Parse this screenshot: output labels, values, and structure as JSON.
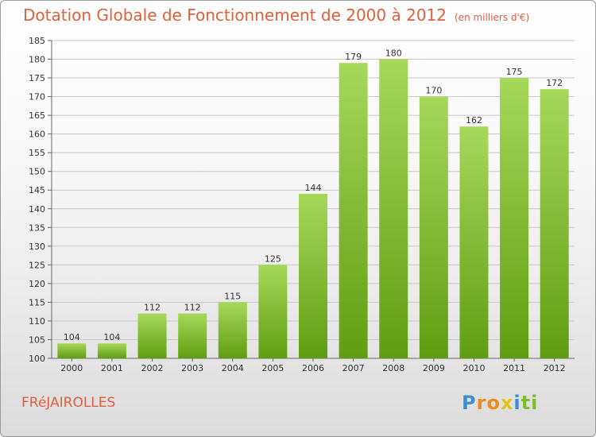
{
  "title": "Dotation Globale de Fonctionnement de 2000 à 2012",
  "unit": "(en milliers d'€)",
  "commune": "FRéJAIROLLES",
  "logo": {
    "letters": [
      "P",
      "r",
      "o",
      "x",
      "i",
      "t",
      "i"
    ],
    "colors": [
      "#3c8fd6",
      "#f08a1c",
      "#f08a1c",
      "#e8c21a",
      "#3c8fd6",
      "#7bbf2a",
      "#7bbf2a"
    ]
  },
  "colors": {
    "bar_light": "#a6d85a",
    "bar_dark": "#5f9e10",
    "text_accent": "#e0603e",
    "grid": "#c8c8c8"
  },
  "chart_data": {
    "type": "bar",
    "title": "Dotation Globale de Fonctionnement de 2000 à 2012",
    "subtitle": "(en milliers d'€)",
    "xlabel": "",
    "ylabel": "",
    "categories": [
      "2000",
      "2001",
      "2002",
      "2003",
      "2004",
      "2005",
      "2006",
      "2007",
      "2008",
      "2009",
      "2010",
      "2011",
      "2012"
    ],
    "values": [
      104,
      104,
      112,
      112,
      115,
      125,
      144,
      179,
      180,
      170,
      162,
      175,
      172
    ],
    "ylim": [
      100,
      185
    ],
    "yticks": [
      100,
      105,
      110,
      115,
      120,
      125,
      130,
      135,
      140,
      145,
      150,
      155,
      160,
      165,
      170,
      175,
      180,
      185
    ],
    "grid": true,
    "data_labels": true
  }
}
